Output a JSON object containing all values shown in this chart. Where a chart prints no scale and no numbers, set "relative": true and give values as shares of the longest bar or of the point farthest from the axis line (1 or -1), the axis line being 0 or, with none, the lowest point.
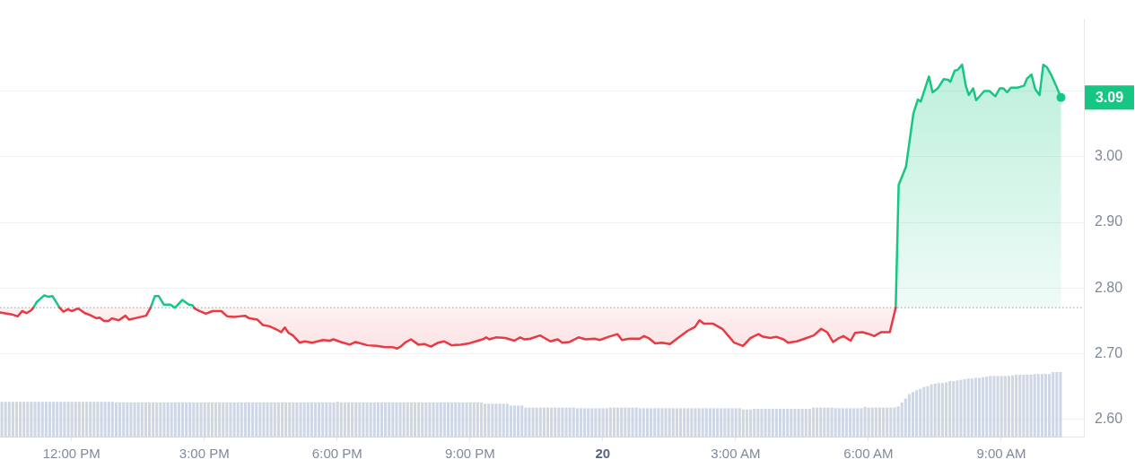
{
  "chart_data": [
    {
      "type": "line",
      "x": [
        "--01-19T10:23",
        "--01-19T10:39",
        "--01-19T10:47",
        "--01-19T10:53",
        "--01-19T10:59",
        "--01-19T11:05",
        "--01-19T11:08",
        "--01-19T11:13",
        "--01-19T11:23",
        "--01-19T11:28",
        "--01-19T11:34",
        "--01-19T11:44",
        "--01-19T11:49",
        "--01-19T11:55",
        "--01-19T12:00",
        "--01-19T12:09",
        "--01-19T12:18",
        "--01-19T12:25",
        "--01-19T12:34",
        "--01-19T12:38",
        "--01-19T12:44",
        "--01-19T12:50",
        "--01-19T12:55",
        "--01-19T13:04",
        "--01-19T13:13",
        "--01-19T13:18",
        "--01-19T13:29",
        "--01-19T13:41",
        "--01-19T13:47",
        "--01-19T13:53",
        "--01-19T13:58",
        "--01-19T14:05",
        "--01-19T14:14",
        "--01-19T14:20",
        "--01-19T14:30",
        "--01-19T14:39",
        "--01-19T14:44",
        "--01-19T14:46",
        "--01-19T14:50",
        "--01-19T15:02",
        "--01-19T15:11",
        "--01-19T15:23",
        "--01-19T15:31",
        "--01-19T15:41",
        "--01-19T15:47",
        "--01-19T15:55",
        "--01-19T16:01",
        "--01-19T16:12",
        "--01-19T16:19",
        "--01-19T16:28",
        "--01-19T16:38",
        "--01-19T16:44",
        "--01-19T16:49",
        "--01-19T16:54",
        "--01-19T17:00",
        "--01-19T17:09",
        "--01-19T17:16",
        "--01-19T17:26",
        "--01-19T17:41",
        "--01-19T17:50",
        "--01-19T17:55",
        "--01-19T18:05",
        "--01-19T18:17",
        "--01-19T18:25",
        "--01-19T18:41",
        "--01-19T18:53",
        "--01-19T19:05",
        "--01-19T19:16",
        "--01-19T19:21",
        "--01-19T19:26",
        "--01-19T19:32",
        "--01-19T19:40",
        "--01-19T19:50",
        "--01-19T19:58",
        "--01-19T20:07",
        "--01-19T20:17",
        "--01-19T20:25",
        "--01-19T20:35",
        "--01-19T20:47",
        "--01-19T20:59",
        "--01-19T21:11",
        "--01-19T21:17",
        "--01-19T21:22",
        "--01-19T21:26",
        "--01-19T21:35",
        "--01-19T21:48",
        "--01-19T22:00",
        "--01-19T22:08",
        "--01-19T22:14",
        "--01-19T22:22",
        "--01-19T22:35",
        "--01-19T22:49",
        "--01-19T22:59",
        "--01-19T23:05",
        "--01-19T23:15",
        "--01-19T23:27",
        "--01-19T23:37",
        "--01-19T23:49",
        "--01-19T23:56",
        "--01-20T00:08",
        "--01-20T00:20",
        "--01-20T00:26",
        "--01-20T00:36",
        "--01-20T00:50",
        "--01-20T00:56",
        "--01-20T01:02",
        "--01-20T01:11",
        "--01-20T01:20",
        "--01-20T01:31",
        "--01-20T01:43",
        "--01-20T01:55",
        "--01-20T02:05",
        "--01-20T02:11",
        "--01-20T02:17",
        "--01-20T02:29",
        "--01-20T02:42",
        "--01-20T02:52",
        "--01-20T02:58",
        "--01-20T03:10",
        "--01-20T03:20",
        "--01-20T03:31",
        "--01-20T03:37",
        "--01-20T03:47",
        "--01-20T03:55",
        "--01-20T04:05",
        "--01-20T04:11",
        "--01-20T04:23",
        "--01-20T04:31",
        "--01-20T04:46",
        "--01-20T04:56",
        "--01-20T05:04",
        "--01-20T05:12",
        "--01-20T05:20",
        "--01-20T05:26",
        "--01-20T05:36",
        "--01-20T05:42",
        "--01-20T05:52",
        "--01-20T06:01",
        "--01-20T06:08",
        "--01-20T06:17",
        "--01-20T06:29",
        "--01-20T06:37",
        "--01-20T06:41",
        "--01-20T06:51",
        "--01-20T07:01",
        "--01-20T07:07",
        "--01-20T07:11",
        "--01-20T07:22",
        "--01-20T07:27",
        "--01-20T07:34",
        "--01-20T07:42",
        "--01-20T07:48",
        "--01-20T07:51",
        "--01-20T07:57",
        "--01-20T08:01",
        "--01-20T08:07",
        "--01-20T08:12",
        "--01-20T08:16",
        "--01-20T08:22",
        "--01-20T08:26",
        "--01-20T08:37",
        "--01-20T08:44",
        "--01-20T08:52",
        "--01-20T08:58",
        "--01-20T09:03",
        "--01-20T09:08",
        "--01-20T09:13",
        "--01-20T09:22",
        "--01-20T09:31",
        "--01-20T09:35",
        "--01-20T09:41",
        "--01-20T09:46",
        "--01-20T09:52",
        "--01-20T09:57",
        "--01-20T10:02",
        "--01-20T10:08",
        "--01-20T10:14",
        "--01-20T10:21"
      ],
      "series": [
        {
          "color": "#ea3943",
          "values": [
            2.763,
            2.76,
            2.757,
            2.765,
            2.762,
            2.766,
            2.77,
            null,
            null,
            null,
            null,
            2.77,
            2.764,
            2.768,
            2.765,
            2.769,
            2.762,
            2.759,
            2.754,
            2.755,
            2.75,
            2.75,
            2.754,
            2.751,
            2.758,
            2.752,
            2.755,
            2.758,
            2.77,
            null,
            null,
            null,
            null,
            null,
            null,
            null,
            null,
            2.77,
            2.767,
            2.761,
            2.765,
            2.765,
            2.757,
            2.756,
            2.757,
            2.758,
            2.754,
            2.752,
            2.744,
            2.742,
            2.737,
            2.733,
            2.74,
            2.732,
            2.728,
            2.717,
            2.719,
            2.717,
            2.721,
            2.72,
            2.722,
            2.718,
            2.714,
            2.718,
            2.713,
            2.712,
            2.71,
            2.71,
            2.708,
            2.711,
            2.717,
            2.722,
            2.714,
            2.715,
            2.711,
            2.717,
            2.719,
            2.713,
            2.714,
            2.716,
            2.72,
            2.722,
            2.725,
            2.722,
            2.725,
            2.724,
            2.72,
            2.725,
            2.722,
            2.723,
            2.728,
            2.719,
            2.722,
            2.717,
            2.718,
            2.725,
            2.722,
            2.723,
            2.721,
            2.726,
            2.73,
            2.721,
            2.723,
            2.723,
            2.727,
            2.724,
            2.716,
            2.717,
            2.715,
            2.725,
            2.735,
            2.741,
            2.751,
            2.746,
            2.746,
            2.738,
            2.725,
            2.717,
            2.712,
            2.724,
            2.73,
            2.726,
            2.724,
            2.726,
            2.722,
            2.717,
            2.719,
            2.722,
            2.728,
            2.738,
            2.733,
            2.718,
            2.724,
            2.727,
            2.72,
            2.732,
            2.733,
            2.73,
            2.727,
            2.733,
            2.733,
            2.77,
            null,
            null,
            null,
            null,
            null,
            null,
            null,
            null,
            null,
            null,
            null,
            null,
            null,
            null,
            null,
            null,
            null,
            null,
            null,
            null,
            null,
            null,
            null,
            null,
            null,
            null,
            null,
            null,
            null,
            null,
            null,
            null,
            null,
            null,
            null,
            null
          ],
          "lower": [
            2.763,
            2.76,
            2.757,
            2.765,
            2.762,
            2.766,
            2.77,
            null,
            null,
            null,
            null,
            2.77,
            2.764,
            2.768,
            2.765,
            2.769,
            2.762,
            2.759,
            2.754,
            2.755,
            2.75,
            2.75,
            2.754,
            2.751,
            2.758,
            2.752,
            2.755,
            2.758,
            2.77,
            null,
            null,
            null,
            null,
            null,
            null,
            null,
            null,
            2.77,
            2.767,
            2.761,
            2.765,
            2.765,
            2.757,
            2.756,
            2.757,
            2.758,
            2.754,
            2.752,
            2.744,
            2.742,
            2.737,
            2.733,
            2.74,
            2.732,
            2.728,
            2.717,
            2.719,
            2.717,
            2.721,
            2.72,
            2.722,
            2.718,
            2.714,
            2.718,
            2.713,
            2.712,
            2.71,
            2.71,
            2.708,
            2.711,
            2.717,
            2.722,
            2.714,
            2.715,
            2.711,
            2.717,
            2.719,
            2.713,
            2.714,
            2.716,
            2.72,
            2.722,
            2.725,
            2.722,
            2.725,
            2.724,
            2.72,
            2.725,
            2.722,
            2.723,
            2.728,
            2.719,
            2.722,
            2.717,
            2.718,
            2.725,
            2.722,
            2.723,
            2.721,
            2.726,
            2.73,
            2.721,
            2.723,
            2.723,
            2.727,
            2.724,
            2.716,
            2.717,
            2.715,
            2.725,
            2.735,
            2.741,
            2.751,
            2.746,
            2.746,
            2.738,
            2.725,
            2.717,
            2.712,
            2.724,
            2.73,
            2.726,
            2.724,
            2.726,
            2.722,
            2.717,
            2.719,
            2.722,
            2.728,
            2.738,
            2.733,
            2.718,
            2.724,
            2.727,
            2.72,
            2.732,
            2.733,
            2.73,
            2.727,
            2.733,
            2.733,
            2.77,
            null,
            null,
            null,
            null,
            null,
            null,
            null,
            null,
            null,
            null,
            null,
            null,
            null,
            null,
            null,
            null,
            null,
            null,
            null,
            null,
            null,
            null,
            null,
            null,
            null,
            null,
            null,
            null,
            null,
            null,
            null,
            null,
            null,
            null,
            null,
            null
          ],
          "upper": [
            2.77,
            2.77,
            2.77,
            2.77,
            2.77,
            2.77,
            2.77,
            null,
            null,
            null,
            null,
            2.77,
            2.77,
            2.77,
            2.77,
            2.77,
            2.77,
            2.77,
            2.77,
            2.77,
            2.77,
            2.77,
            2.77,
            2.77,
            2.77,
            2.77,
            2.77,
            2.77,
            2.77,
            null,
            null,
            null,
            null,
            null,
            null,
            null,
            null,
            2.77,
            2.77,
            2.77,
            2.77,
            2.77,
            2.77,
            2.77,
            2.77,
            2.77,
            2.77,
            2.77,
            2.77,
            2.77,
            2.77,
            2.77,
            2.77,
            2.77,
            2.77,
            2.77,
            2.77,
            2.77,
            2.77,
            2.77,
            2.77,
            2.77,
            2.77,
            2.77,
            2.77,
            2.77,
            2.77,
            2.77,
            2.77,
            2.77,
            2.77,
            2.77,
            2.77,
            2.77,
            2.77,
            2.77,
            2.77,
            2.77,
            2.77,
            2.77,
            2.77,
            2.77,
            2.77,
            2.77,
            2.77,
            2.77,
            2.77,
            2.77,
            2.77,
            2.77,
            2.77,
            2.77,
            2.77,
            2.77,
            2.77,
            2.77,
            2.77,
            2.77,
            2.77,
            2.77,
            2.77,
            2.77,
            2.77,
            2.77,
            2.77,
            2.77,
            2.77,
            2.77,
            2.77,
            2.77,
            2.77,
            2.77,
            2.77,
            2.77,
            2.77,
            2.77,
            2.77,
            2.77,
            2.77,
            2.77,
            2.77,
            2.77,
            2.77,
            2.77,
            2.77,
            2.77,
            2.77,
            2.77,
            2.77,
            2.77,
            2.77,
            2.77,
            2.77,
            2.77,
            2.77,
            2.77,
            2.77,
            2.77,
            2.77,
            2.77,
            2.77,
            2.77,
            null,
            null,
            null,
            null,
            null,
            null,
            null,
            null,
            null,
            null,
            null,
            null,
            null,
            null,
            null,
            null,
            null,
            null,
            null,
            null,
            null,
            null,
            null,
            null,
            null,
            null,
            null,
            null,
            null,
            null,
            null,
            null,
            null,
            null,
            null,
            null
          ]
        },
        {
          "color": "#16c784",
          "values": [
            null,
            null,
            null,
            null,
            null,
            null,
            2.77,
            2.779,
            2.789,
            2.787,
            2.788,
            2.77,
            null,
            null,
            null,
            null,
            null,
            null,
            null,
            null,
            null,
            null,
            null,
            null,
            null,
            null,
            null,
            null,
            2.77,
            2.788,
            2.788,
            2.775,
            2.775,
            2.77,
            2.782,
            2.775,
            2.774,
            2.77,
            null,
            null,
            null,
            null,
            null,
            null,
            null,
            null,
            null,
            null,
            null,
            null,
            null,
            null,
            null,
            null,
            null,
            null,
            null,
            null,
            null,
            null,
            null,
            null,
            null,
            null,
            null,
            null,
            null,
            null,
            null,
            null,
            null,
            null,
            null,
            null,
            null,
            null,
            null,
            null,
            null,
            null,
            null,
            null,
            null,
            null,
            null,
            null,
            null,
            null,
            null,
            null,
            null,
            null,
            null,
            null,
            null,
            null,
            null,
            null,
            null,
            null,
            null,
            null,
            null,
            null,
            null,
            null,
            null,
            null,
            null,
            null,
            null,
            null,
            null,
            null,
            null,
            null,
            null,
            null,
            null,
            null,
            null,
            null,
            null,
            null,
            null,
            null,
            null,
            null,
            null,
            null,
            null,
            null,
            null,
            null,
            null,
            null,
            null,
            null,
            null,
            null,
            null,
            2.77,
            2.957,
            2.985,
            3.066,
            3.087,
            3.084,
            3.122,
            3.098,
            3.104,
            3.118,
            3.117,
            3.114,
            3.131,
            3.132,
            3.14,
            3.108,
            3.094,
            3.104,
            3.086,
            3.1,
            3.1,
            3.092,
            3.104,
            3.104,
            3.098,
            3.105,
            3.105,
            3.108,
            3.119,
            3.125,
            3.103,
            3.094,
            3.14,
            3.136,
            3.124,
            3.109,
            3.09
          ],
          "lower": [
            null,
            null,
            null,
            null,
            null,
            null,
            null,
            null,
            null,
            null,
            null,
            null,
            null,
            null,
            null,
            null,
            null,
            null,
            null,
            null,
            null,
            null,
            null,
            null,
            null,
            null,
            null,
            null,
            null,
            null,
            null,
            null,
            null,
            null,
            null,
            null,
            null,
            null,
            null,
            null,
            null,
            null,
            null,
            null,
            null,
            null,
            null,
            null,
            null,
            null,
            null,
            null,
            null,
            null,
            null,
            null,
            null,
            null,
            null,
            null,
            null,
            null,
            null,
            null,
            null,
            null,
            null,
            null,
            null,
            null,
            null,
            null,
            null,
            null,
            null,
            null,
            null,
            null,
            null,
            null,
            null,
            null,
            null,
            null,
            null,
            null,
            null,
            null,
            null,
            null,
            null,
            null,
            null,
            null,
            null,
            null,
            null,
            null,
            null,
            null,
            null,
            null,
            null,
            null,
            null,
            null,
            null,
            null,
            null,
            null,
            null,
            null,
            null,
            null,
            null,
            null,
            null,
            null,
            null,
            null,
            null,
            null,
            null,
            null,
            null,
            null,
            null,
            null,
            null,
            null,
            null,
            null,
            null,
            null,
            null,
            null,
            null,
            null,
            null,
            null,
            null,
            2.77,
            2.77,
            2.77,
            2.77,
            2.77,
            2.77,
            2.77,
            2.77,
            2.77,
            2.77,
            2.77,
            2.77,
            2.77,
            2.77,
            2.77,
            2.77,
            2.77,
            2.77,
            2.77,
            2.77,
            2.77,
            2.77,
            2.77,
            2.77,
            2.77,
            2.77,
            2.77,
            2.77,
            2.77,
            2.77,
            2.77,
            2.77,
            2.77,
            2.77,
            2.77,
            2.77,
            2.77
          ],
          "upper": [
            null,
            null,
            null,
            null,
            null,
            null,
            null,
            null,
            null,
            null,
            null,
            null,
            null,
            null,
            null,
            null,
            null,
            null,
            null,
            null,
            null,
            null,
            null,
            null,
            null,
            null,
            null,
            null,
            null,
            null,
            null,
            null,
            null,
            null,
            null,
            null,
            null,
            null,
            null,
            null,
            null,
            null,
            null,
            null,
            null,
            null,
            null,
            null,
            null,
            null,
            null,
            null,
            null,
            null,
            null,
            null,
            null,
            null,
            null,
            null,
            null,
            null,
            null,
            null,
            null,
            null,
            null,
            null,
            null,
            null,
            null,
            null,
            null,
            null,
            null,
            null,
            null,
            null,
            null,
            null,
            null,
            null,
            null,
            null,
            null,
            null,
            null,
            null,
            null,
            null,
            null,
            null,
            null,
            null,
            null,
            null,
            null,
            null,
            null,
            null,
            null,
            null,
            null,
            null,
            null,
            null,
            null,
            null,
            null,
            null,
            null,
            null,
            null,
            null,
            null,
            null,
            null,
            null,
            null,
            null,
            null,
            null,
            null,
            null,
            null,
            null,
            null,
            null,
            null,
            null,
            null,
            null,
            null,
            null,
            null,
            null,
            null,
            null,
            null,
            null,
            null,
            2.77,
            2.957,
            2.985,
            3.066,
            3.087,
            3.084,
            3.122,
            3.098,
            3.104,
            3.118,
            3.117,
            3.114,
            3.131,
            3.132,
            3.14,
            3.108,
            3.094,
            3.104,
            3.086,
            3.1,
            3.1,
            3.092,
            3.104,
            3.104,
            3.098,
            3.105,
            3.105,
            3.108,
            3.119,
            3.125,
            3.103,
            3.094,
            3.14,
            3.136,
            3.124,
            3.109,
            3.09
          ]
        }
      ],
      "xlim": [
        "--01-19T10:23",
        "--01-20T10:52"
      ],
      "xticks": [
        {
          "value": "--01-19T12:00",
          "label": "12:00 PM"
        },
        {
          "value": "--01-19T15:00",
          "label": "3:00 PM"
        },
        {
          "value": "--01-19T18:00",
          "label": "6:00 PM"
        },
        {
          "value": "--01-19T21:00",
          "label": "9:00 PM"
        },
        {
          "value": "--01-20T00:00",
          "label": "20"
        },
        {
          "value": "--01-20T03:00",
          "label": "3:00 AM"
        },
        {
          "value": "--01-20T06:00",
          "label": "6:00 AM"
        },
        {
          "value": "--01-20T09:00",
          "label": "9:00 AM"
        }
      ],
      "ylim": [
        2.574,
        3.209
      ],
      "yticks": [
        {
          "value": 2.6,
          "label": "2.60"
        },
        {
          "value": 2.7,
          "label": "2.70"
        },
        {
          "value": 2.8,
          "label": "2.80"
        },
        {
          "value": 2.9,
          "label": "2.90"
        },
        {
          "value": 3.0,
          "label": "3.00"
        },
        {
          "value": 3.1,
          "label": null
        }
      ],
      "grid": "y",
      "ref_lines": [
        {
          "axis": "y",
          "value": 2.77,
          "line_style": "dotted",
          "color": "#b9bec7"
        }
      ],
      "annotations": [
        {
          "text": "3.09",
          "x": "--01-20T10:21",
          "y": 3.09
        }
      ]
    },
    {
      "type": "bar",
      "relative": true,
      "color": "#cfd6e4",
      "categories": [
        null,
        null,
        null,
        null,
        null,
        null,
        null,
        null,
        null,
        null,
        null,
        null,
        null,
        null,
        null,
        null,
        null,
        null,
        null,
        null,
        null,
        null,
        null,
        null,
        null,
        null,
        null,
        null,
        null,
        null,
        null,
        null,
        null,
        null,
        null,
        null,
        null,
        null,
        null,
        null,
        null,
        null,
        null,
        null,
        null,
        null,
        null,
        null,
        null,
        null,
        null,
        null,
        null,
        null,
        null,
        null,
        null,
        null,
        null,
        null,
        null,
        null,
        null,
        null,
        null,
        null,
        null,
        null,
        null,
        null,
        null,
        null,
        null,
        null,
        null,
        null,
        null,
        null,
        null,
        null,
        null,
        null,
        null,
        null,
        null,
        null,
        null,
        null,
        null,
        null,
        null,
        null,
        null,
        null,
        null,
        null,
        null,
        null,
        null,
        null,
        null,
        null,
        null,
        null,
        null,
        null,
        null,
        null,
        null,
        null,
        null,
        null,
        null,
        null,
        null,
        null,
        null,
        null,
        null,
        null,
        null,
        null,
        null,
        null,
        null,
        null,
        null,
        null,
        null,
        null,
        null,
        null,
        null,
        null,
        null,
        null,
        null,
        null,
        null,
        null,
        null,
        null,
        null,
        null,
        null,
        null,
        null,
        null,
        null,
        null,
        null,
        null,
        null,
        null,
        null,
        null,
        null,
        null,
        null,
        null,
        null,
        null,
        null,
        null,
        null,
        null,
        null,
        null,
        null,
        null,
        null,
        null,
        null,
        null,
        null,
        null,
        null,
        null,
        null,
        null,
        null,
        null,
        null,
        null,
        null,
        null,
        null,
        null,
        null,
        null,
        null,
        null,
        null,
        null,
        null,
        null,
        null,
        null,
        null,
        null,
        null,
        null,
        null,
        null,
        null,
        null,
        null,
        null,
        null,
        null,
        null,
        null,
        null,
        null,
        null,
        null,
        null,
        null,
        null,
        null,
        null,
        null,
        null,
        null,
        null,
        null,
        null,
        null,
        null,
        null,
        null,
        null,
        null,
        null,
        null,
        null,
        null,
        null,
        null,
        null,
        null,
        null,
        null,
        null,
        null,
        null,
        null,
        null,
        null,
        null,
        null,
        null,
        null,
        null,
        null,
        null,
        null,
        null,
        null,
        null,
        null,
        null,
        null,
        null,
        null,
        null,
        null,
        null,
        null,
        null,
        null,
        null,
        null,
        null,
        null,
        null,
        null,
        null,
        null,
        null,
        null,
        null,
        null,
        null,
        null,
        null,
        null,
        null
      ],
      "values": [
        0.54,
        0.54,
        0.54,
        0.54,
        0.54,
        0.54,
        0.54,
        0.54,
        0.54,
        0.54,
        0.54,
        0.54,
        0.54,
        0.54,
        0.54,
        0.54,
        0.54,
        0.54,
        0.54,
        0.54,
        0.54,
        0.54,
        0.54,
        0.54,
        0.54,
        0.54,
        0.54,
        0.54,
        0.54,
        0.54,
        0.54,
        0.53,
        0.53,
        0.53,
        0.53,
        0.53,
        0.53,
        0.53,
        0.53,
        0.53,
        0.53,
        0.53,
        0.53,
        0.53,
        0.53,
        0.53,
        0.53,
        0.53,
        0.53,
        0.53,
        0.53,
        0.53,
        0.53,
        0.53,
        0.53,
        0.53,
        0.53,
        0.53,
        0.53,
        0.53,
        0.53,
        0.53,
        0.53,
        0.53,
        0.53,
        0.53,
        0.53,
        0.53,
        0.53,
        0.53,
        0.53,
        0.53,
        0.53,
        0.53,
        0.53,
        0.53,
        0.53,
        0.53,
        0.53,
        0.53,
        0.53,
        0.53,
        0.53,
        0.53,
        0.53,
        0.53,
        0.53,
        0.53,
        0.53,
        0.53,
        0.53,
        0.54,
        0.53,
        0.53,
        0.53,
        0.53,
        0.53,
        0.53,
        0.53,
        0.53,
        0.53,
        0.53,
        0.53,
        0.53,
        0.53,
        0.53,
        0.53,
        0.53,
        0.53,
        0.53,
        0.53,
        0.53,
        0.53,
        0.53,
        0.53,
        0.53,
        0.53,
        0.53,
        0.53,
        0.53,
        0.53,
        0.53,
        0.53,
        0.53,
        0.53,
        0.53,
        0.53,
        0.53,
        0.53,
        0.53,
        0.53,
        0.51,
        0.51,
        0.51,
        0.51,
        0.51,
        0.51,
        0.51,
        0.48,
        0.48,
        0.48,
        0.48,
        0.45,
        0.45,
        0.45,
        0.45,
        0.45,
        0.45,
        0.45,
        0.45,
        0.45,
        0.45,
        0.45,
        0.45,
        0.45,
        0.45,
        0.44,
        0.44,
        0.44,
        0.44,
        0.44,
        0.44,
        0.44,
        0.44,
        0.44,
        0.45,
        0.45,
        0.45,
        0.45,
        0.45,
        0.45,
        0.45,
        0.45,
        0.44,
        0.44,
        0.44,
        0.44,
        0.44,
        0.44,
        0.44,
        0.44,
        0.44,
        0.44,
        0.44,
        0.44,
        0.44,
        0.44,
        0.44,
        0.44,
        0.44,
        0.44,
        0.44,
        0.44,
        0.44,
        0.44,
        0.44,
        0.44,
        0.44,
        0.44,
        0.44,
        0.44,
        0.42,
        0.42,
        0.42,
        0.43,
        0.43,
        0.43,
        0.43,
        0.43,
        0.43,
        0.43,
        0.43,
        0.43,
        0.43,
        0.43,
        0.43,
        0.43,
        0.43,
        0.43,
        0.43,
        0.45,
        0.45,
        0.45,
        0.45,
        0.45,
        0.45,
        0.44,
        0.44,
        0.44,
        0.44,
        0.44,
        0.44,
        0.44,
        0.44,
        0.46,
        0.45,
        0.45,
        0.45,
        0.45,
        0.45,
        0.45,
        0.45,
        0.45,
        0.47,
        0.53,
        0.59,
        0.66,
        0.69,
        0.72,
        0.74,
        0.77,
        0.78,
        0.81,
        0.82,
        0.83,
        0.83,
        0.84,
        0.86,
        0.86,
        0.87,
        0.88,
        0.89,
        0.9,
        0.9,
        0.91,
        0.91,
        0.92,
        0.93,
        0.94,
        0.94,
        0.94,
        0.94,
        0.94,
        0.94,
        0.95,
        0.96,
        0.96,
        0.96,
        0.96,
        0.96,
        0.97,
        0.97,
        0.97,
        0.97,
        0.97,
        1,
        1,
        1
      ]
    }
  ]
}
